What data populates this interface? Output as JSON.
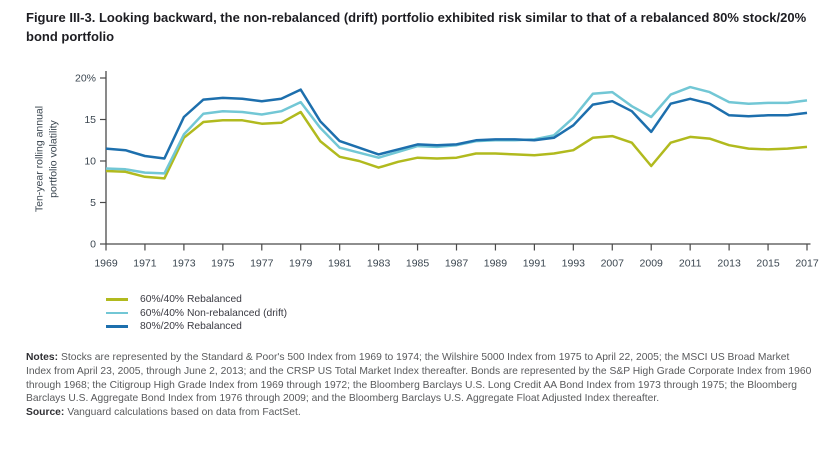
{
  "figure": {
    "title": "Figure III-3. Looking backward, the non-rebalanced (drift) portfolio exhibited risk similar to that of a rebalanced 80% stock/20% bond portfolio"
  },
  "chart_data": {
    "type": "line",
    "title": "Ten-year rolling annual portfolio volatility, 1969-2017",
    "ylabel": "Ten-year rolling annual portfolio volatility",
    "xlabel": "",
    "ylim": [
      0,
      20
    ],
    "grid": false,
    "legend_position": "bottom-left",
    "x_tick_labels": [
      "1969",
      "1971",
      "1973",
      "1975",
      "1977",
      "1979",
      "1981",
      "1983",
      "1985",
      "1987",
      "1989",
      "1991",
      "1993",
      "2007",
      "2009",
      "2011",
      "2013",
      "2015",
      "2017"
    ],
    "y_tick_labels": [
      "0",
      "5",
      "10",
      "15",
      "20%"
    ],
    "y_tick_values": [
      0,
      5,
      10,
      15,
      20
    ],
    "points_per_label_interval": 2,
    "series": [
      {
        "name": "60%/40% Rebalanced",
        "color": "#b1ba1e",
        "values": [
          8.8,
          8.7,
          8.1,
          7.9,
          12.8,
          14.7,
          14.9,
          14.9,
          14.5,
          14.6,
          15.9,
          12.4,
          10.5,
          10.0,
          9.2,
          9.9,
          10.4,
          10.3,
          10.4,
          10.9,
          10.9,
          10.8,
          10.7,
          10.9,
          11.3,
          12.8,
          13.0,
          12.2,
          9.4,
          12.2,
          12.9,
          12.7,
          11.9,
          11.5,
          11.4,
          11.5,
          11.7
        ]
      },
      {
        "name": "60%/40% Non-rebalanced (drift)",
        "color": "#72c7d5",
        "values": [
          9.1,
          9.0,
          8.6,
          8.5,
          13.2,
          15.7,
          16.0,
          15.9,
          15.6,
          16.0,
          17.1,
          14.0,
          11.6,
          11.0,
          10.4,
          11.1,
          11.8,
          11.7,
          11.9,
          12.4,
          12.5,
          12.5,
          12.6,
          13.1,
          15.2,
          18.1,
          18.3,
          16.6,
          15.3,
          18.0,
          18.9,
          18.3,
          17.1,
          16.9,
          17.0,
          17.0,
          17.3
        ]
      },
      {
        "name": "80%/20% Rebalanced",
        "color": "#1d6fad",
        "values": [
          11.5,
          11.3,
          10.6,
          10.3,
          15.3,
          17.4,
          17.6,
          17.5,
          17.2,
          17.5,
          18.6,
          14.8,
          12.4,
          11.6,
          10.8,
          11.4,
          12.0,
          11.9,
          12.0,
          12.5,
          12.6,
          12.6,
          12.5,
          12.8,
          14.3,
          16.8,
          17.2,
          16.0,
          13.5,
          16.9,
          17.5,
          16.9,
          15.5,
          15.4,
          15.5,
          15.5,
          15.8
        ]
      }
    ]
  },
  "notes": {
    "label": "Notes:",
    "text": "Stocks are represented by the Standard & Poor's 500 Index from 1969 to 1974; the Wilshire 5000 Index from 1975 to April 22, 2005; the MSCI US Broad Market Index from April 23, 2005, through June 2, 2013; and the CRSP US Total Market Index thereafter. Bonds are represented by the S&P High Grade Corporate Index from 1960 through 1968; the Citigroup High Grade Index from 1969 through 1972; the Bloomberg Barclays U.S. Long Credit AA Bond Index from 1973 through 1975; the Bloomberg Barclays U.S. Aggregate Bond Index from 1976 through 2009; and the Bloomberg Barclays U.S. Aggregate Float Adjusted Index thereafter."
  },
  "source": {
    "label": "Source:",
    "text": "Vanguard calculations based on data from FactSet."
  },
  "colors": {
    "axis": "#4a4a4a",
    "tick_text": "#3b4650",
    "title_text": "#1d1d22",
    "notes_text": "#595a5c",
    "series_olive": "#b1ba1e",
    "series_cyan": "#72c7d5",
    "series_blue": "#1d6fad"
  }
}
